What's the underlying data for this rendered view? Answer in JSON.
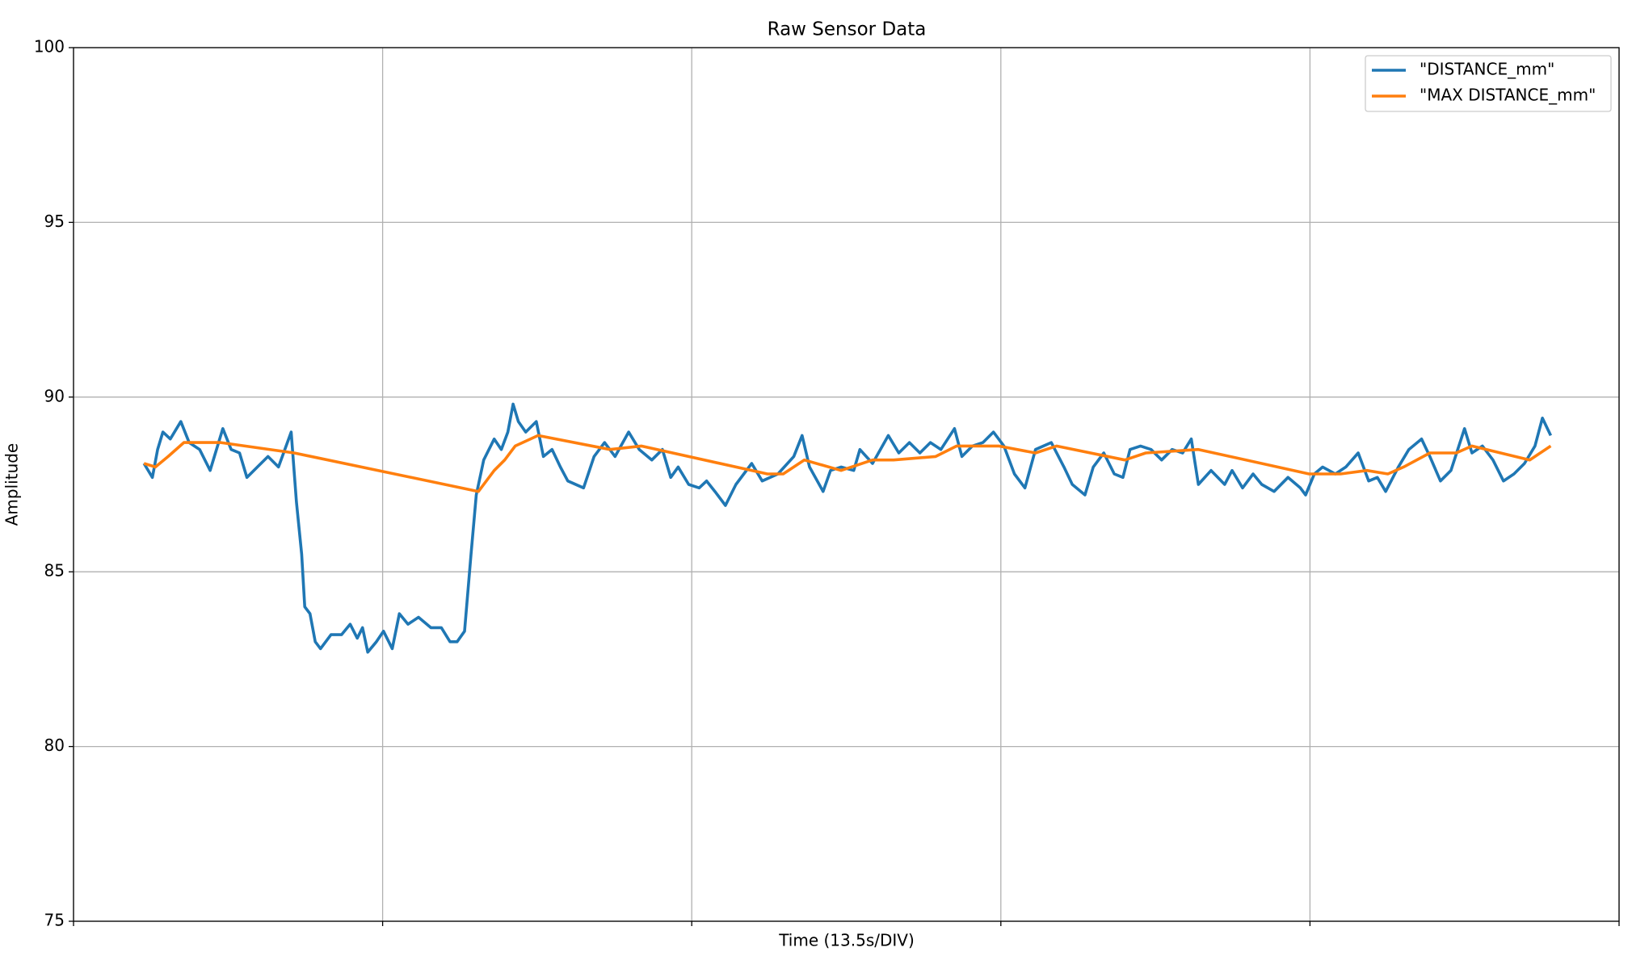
{
  "chart_data": {
    "type": "line",
    "title": "Raw Sensor Data",
    "xlabel": "Time (13.5s/DIV)",
    "ylabel": "Amplitude",
    "xlim": [
      0,
      5
    ],
    "xticks": [
      0,
      1,
      2,
      3,
      4,
      5
    ],
    "ylim": [
      75,
      100
    ],
    "yticks": [
      75,
      80,
      85,
      90,
      95,
      100
    ],
    "grid": true,
    "legend": "upper right",
    "series": [
      {
        "name": "\"DISTANCE_mm\"",
        "color": "#1f77b4",
        "x": [
          0.228,
          0.255,
          0.272,
          0.289,
          0.313,
          0.347,
          0.374,
          0.408,
          0.442,
          0.483,
          0.51,
          0.537,
          0.561,
          0.595,
          0.629,
          0.663,
          0.704,
          0.721,
          0.738,
          0.748,
          0.765,
          0.782,
          0.799,
          0.833,
          0.867,
          0.895,
          0.918,
          0.935,
          0.952,
          0.98,
          1.003,
          1.031,
          1.054,
          1.082,
          1.116,
          1.156,
          1.19,
          1.218,
          1.241,
          1.265,
          1.286,
          1.303,
          1.327,
          1.344,
          1.361,
          1.384,
          1.405,
          1.422,
          1.439,
          1.463,
          1.497,
          1.52,
          1.548,
          1.575,
          1.599,
          1.65,
          1.684,
          1.718,
          1.752,
          1.796,
          1.83,
          1.871,
          1.905,
          1.932,
          1.956,
          1.99,
          2.024,
          2.048,
          2.075,
          2.109,
          2.143,
          2.194,
          2.228,
          2.279,
          2.33,
          2.357,
          2.381,
          2.425,
          2.449,
          2.483,
          2.524,
          2.544,
          2.585,
          2.636,
          2.67,
          2.704,
          2.738,
          2.772,
          2.806,
          2.85,
          2.874,
          2.908,
          2.942,
          2.976,
          3.01,
          3.044,
          3.078,
          3.112,
          3.163,
          3.204,
          3.231,
          3.272,
          3.299,
          3.333,
          3.367,
          3.395,
          3.418,
          3.452,
          3.486,
          3.52,
          3.554,
          3.588,
          3.616,
          3.639,
          3.68,
          3.724,
          3.748,
          3.782,
          3.816,
          3.844,
          3.884,
          3.929,
          3.969,
          3.986,
          4.014,
          4.041,
          4.082,
          4.116,
          4.156,
          4.19,
          4.218,
          4.245,
          4.286,
          4.32,
          4.361,
          4.388,
          4.422,
          4.456,
          4.5,
          4.524,
          4.558,
          4.592,
          4.626,
          4.66,
          4.694,
          4.728,
          4.752,
          4.779
        ],
        "values": [
          88.1,
          87.7,
          88.5,
          89.0,
          88.8,
          89.3,
          88.7,
          88.5,
          87.9,
          89.1,
          88.5,
          88.4,
          87.7,
          88.0,
          88.3,
          88.0,
          89.0,
          87.0,
          85.5,
          84.0,
          83.8,
          83.0,
          82.8,
          83.2,
          83.2,
          83.5,
          83.1,
          83.4,
          82.7,
          83.0,
          83.3,
          82.8,
          83.8,
          83.5,
          83.7,
          83.4,
          83.4,
          83.0,
          83.0,
          83.3,
          85.5,
          87.2,
          88.2,
          88.5,
          88.8,
          88.5,
          89.0,
          89.8,
          89.3,
          89.0,
          89.3,
          88.3,
          88.5,
          88.0,
          87.6,
          87.4,
          88.3,
          88.7,
          88.3,
          89.0,
          88.5,
          88.2,
          88.5,
          87.7,
          88.0,
          87.5,
          87.4,
          87.6,
          87.3,
          86.9,
          87.5,
          88.1,
          87.6,
          87.8,
          88.3,
          88.9,
          88.0,
          87.3,
          87.9,
          88.0,
          87.9,
          88.5,
          88.1,
          88.9,
          88.4,
          88.7,
          88.4,
          88.7,
          88.5,
          89.1,
          88.3,
          88.6,
          88.7,
          89.0,
          88.6,
          87.8,
          87.4,
          88.5,
          88.7,
          88.0,
          87.5,
          87.2,
          88.0,
          88.4,
          87.8,
          87.7,
          88.5,
          88.6,
          88.5,
          88.2,
          88.5,
          88.4,
          88.8,
          87.5,
          87.9,
          87.5,
          87.9,
          87.4,
          87.8,
          87.5,
          87.3,
          87.7,
          87.4,
          87.2,
          87.8,
          88.0,
          87.8,
          88.0,
          88.4,
          87.6,
          87.7,
          87.3,
          88.0,
          88.5,
          88.8,
          88.3,
          87.6,
          87.9,
          89.1,
          88.4,
          88.6,
          88.2,
          87.6,
          87.8,
          88.1,
          88.6,
          89.4,
          88.9
        ]
      },
      {
        "name": "\"MAX DISTANCE_mm\"",
        "color": "#ff7f0e",
        "x": [
          0.228,
          0.265,
          0.306,
          0.357,
          0.476,
          0.714,
          1.31,
          1.361,
          1.395,
          1.429,
          1.503,
          1.735,
          1.837,
          2.245,
          2.296,
          2.364,
          2.483,
          2.585,
          2.653,
          2.789,
          2.857,
          2.993,
          3.112,
          3.18,
          3.401,
          3.469,
          3.639,
          3.997,
          4.099,
          4.184,
          4.252,
          4.303,
          4.388,
          4.473,
          4.524,
          4.711,
          4.779
        ],
        "values": [
          88.1,
          88.0,
          88.3,
          88.7,
          88.7,
          88.4,
          87.3,
          87.9,
          88.2,
          88.6,
          88.9,
          88.5,
          88.6,
          87.8,
          87.8,
          88.2,
          87.9,
          88.2,
          88.2,
          88.3,
          88.6,
          88.6,
          88.4,
          88.6,
          88.2,
          88.4,
          88.5,
          87.8,
          87.8,
          87.9,
          87.8,
          88.0,
          88.4,
          88.4,
          88.6,
          88.2,
          88.6
        ]
      }
    ]
  }
}
